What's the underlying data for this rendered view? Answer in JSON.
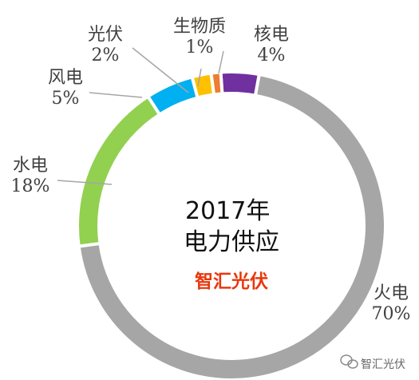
{
  "chart_data": {
    "type": "pie",
    "variant": "donut",
    "title": "2017年\n电力供应",
    "title_lines": [
      "2017年",
      "电力供应"
    ],
    "categories": [
      "核电",
      "火电",
      "水电",
      "风电",
      "光伏",
      "生物质"
    ],
    "values": [
      4,
      70,
      18,
      5,
      2,
      1
    ],
    "value_labels": [
      "4%",
      "70%",
      "18%",
      "5%",
      "2%",
      "1%"
    ],
    "colors": [
      "#7030a0",
      "#a6a6a6",
      "#92d050",
      "#00b0f0",
      "#ffc000",
      "#ed7d31"
    ],
    "legend": "none"
  },
  "watermark": {
    "text": "智汇光伏",
    "color": "#e8380d"
  },
  "footer": {
    "text": "智汇光伏"
  }
}
